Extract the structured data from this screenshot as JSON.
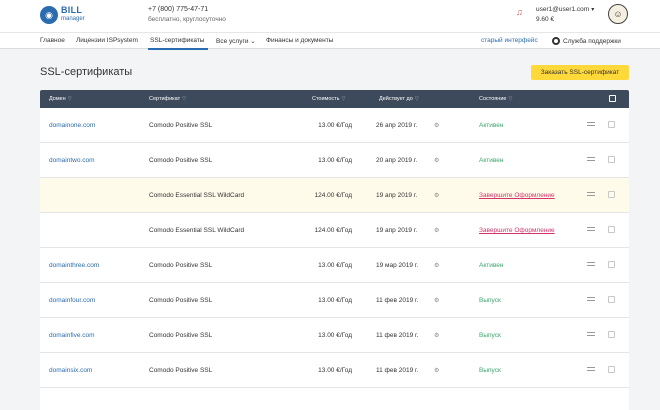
{
  "header": {
    "logo_title": "BILL",
    "logo_subtitle": "manager",
    "phone": "+7 (800) 775-47-71",
    "phone_note": "бесплатно, круглосуточно",
    "user_email": "user1@user1.com",
    "balance": "9.60 €"
  },
  "nav": {
    "items": [
      "Главное",
      "Лицензии ISPsystem",
      "SSL-сертификаты",
      "Все услуги",
      "Финансы и документы"
    ],
    "old_interface": "старый интерфейс",
    "support": "Служба поддержки"
  },
  "page": {
    "title": "SSL-сертификаты",
    "order_button": "Заказать SSL-сертификат"
  },
  "table": {
    "headers": [
      "Домен",
      "Сертификат",
      "Стоимость",
      "Действует до",
      "Состояние"
    ],
    "rows": [
      {
        "domain": "domainone.com",
        "cert": "Comodo Positive SSL",
        "price": "13.00 €/Год",
        "date": "26 апр 2019 г.",
        "status": "Активен",
        "status_type": "active"
      },
      {
        "domain": "domaintwo.com",
        "cert": "Comodo Positive SSL",
        "price": "13.00 €/Год",
        "date": "20 апр 2019 г.",
        "status": "Активен",
        "status_type": "active"
      },
      {
        "domain": "",
        "cert": "Comodo Essential SSL WildCard",
        "price": "124.00 €/Год",
        "date": "19 апр 2019 г.",
        "status": "Завершите Оформление",
        "status_type": "pending"
      },
      {
        "domain": "",
        "cert": "Comodo Essential SSL WildCard",
        "price": "124.00 €/Год",
        "date": "19 апр 2019 г.",
        "status": "Завершите Оформление",
        "status_type": "pending"
      },
      {
        "domain": "domainthree.com",
        "cert": "Comodo Positive SSL",
        "price": "13.00 €/Год",
        "date": "19 мар 2019 г.",
        "status": "Активен",
        "status_type": "active"
      },
      {
        "domain": "domainfour.com",
        "cert": "Comodo Positive SSL",
        "price": "13.00 €/Год",
        "date": "11 фев 2019 г.",
        "status": "Выпуск",
        "status_type": "issue"
      },
      {
        "domain": "domainfive.com",
        "cert": "Comodo Positive SSL",
        "price": "13.00 €/Год",
        "date": "11 фев 2019 г.",
        "status": "Выпуск",
        "status_type": "issue"
      },
      {
        "domain": "domainsix.com",
        "cert": "Comodo Positive SSL",
        "price": "13.00 €/Год",
        "date": "11 фев 2019 г.",
        "status": "Выпуск",
        "status_type": "issue"
      }
    ]
  },
  "colors": {
    "accent": "#2b6cb0",
    "button": "#ffd83a",
    "header_bg": "#3d4a5c",
    "active": "#3aa56b",
    "pending": "#d6336c"
  },
  "icons": {
    "filter": "filter-icon",
    "gear": "gear-icon",
    "bell": "bell-icon",
    "support": "lifebuoy-icon"
  }
}
